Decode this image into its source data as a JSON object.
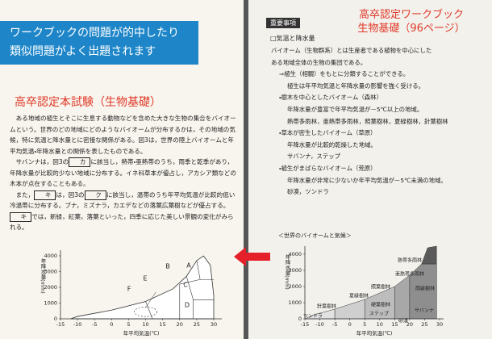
{
  "banner": {
    "lines": [
      "ワークブックの問題が的中したり",
      "類似問題がよく出題されます"
    ]
  },
  "left_page": {
    "heading": "高卒認定本試験（生物基礎）",
    "paragraphs": [
      [
        "ある地域の植生とそこに生息する動物などを含めた大きな生物の集合をバイオームという。世界のどの地域にどのようなバイオームが分布するかは，その地域の気候，特に気温と降水量とに密接な関係がある。図3は，世界の陸上バイオームと年平均気温・年降水量との関係を表したものである。"
      ],
      [
        "サバンナは，図3の",
        {
          "boxed": "カ"
        },
        "に該当し，熱帯・亜熱帯のうち，雨季と乾季があり，年降水量が比較的少ない地域に分布する。イネ科草本が優占し，アカシア類などの木本が点在することもある。"
      ],
      [
        "また，",
        {
          "boxed": "キ"
        },
        "は，図3の",
        {
          "boxed": "ク"
        },
        "に該当し，温帯のうち年平均気温が比較的低い冷温帯に分布する。ブナ，ミズナラ，カエデなどの落葉広葉樹などが優占する。",
        {
          "boxed": "キ"
        },
        "では，新緑，紅葉，落葉といった，四季に応じた美しい景観の変化がみられる。"
      ]
    ],
    "chart": {
      "y_label": "年降水量(mm)",
      "x_label": "年平均気温(℃)",
      "yticks": [
        0,
        1000,
        2000,
        3000,
        4000
      ],
      "xticks": [
        -15,
        -10,
        -5,
        0,
        5,
        10,
        15,
        20,
        25,
        30
      ],
      "regions": [
        "A",
        "B",
        "C",
        "D",
        "E",
        "F"
      ]
    }
  },
  "right_page": {
    "title": [
      "高卒認定ワークブック",
      "生物基礎（96ページ）"
    ],
    "tag": "重要事項",
    "section": "□気温と降水量",
    "lines": [
      "バイオーム（生物群系）とは生産者である植物を中心にした",
      "ある地域全体の生物の集団である。",
      "⇒植生（相観）をもとに分類することができる。",
      "植生は年平均気温と年降水量の影響を強く受ける。",
      "・樹木を中心としたバイオーム（森林）",
      "年降水量が豊富で年平均気温が－5℃以上の地域。",
      "熱帯多雨林，亜熱帯多雨林，照葉樹林，夏緑樹林，針葉樹林",
      "・草本が密生したバイオーム（草原）",
      "年降水量が比較的乾燥した地域。",
      "サバンナ，ステップ",
      "・植生がまばらなバイオーム（荒原）",
      "年降水量が非常に少ないか年平均気温が－5℃未満の地域。",
      "砂漠，ツンドラ"
    ],
    "chart": {
      "caption": "＜世界のバイオームと気候＞",
      "y_label": "年降水量(mm)",
      "x_label": "年平均気温(℃)",
      "yticks": [
        0,
        1000,
        2000,
        3000,
        4000
      ],
      "xticks": [
        -15,
        -10,
        -5,
        0,
        5,
        10,
        15,
        20,
        25,
        30
      ],
      "regions": [
        "熱帯多雨林",
        "亜熱帯多雨林",
        "照葉樹林",
        "雨緑樹林",
        "夏緑樹林",
        "針葉樹林",
        "硬葉樹林",
        "ステップ",
        "サバンナ",
        "ツンドラ",
        "砂漠"
      ]
    }
  }
}
